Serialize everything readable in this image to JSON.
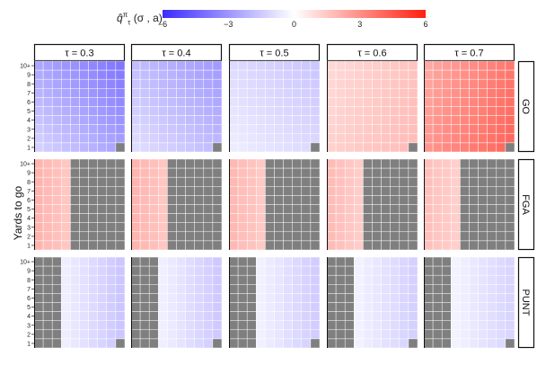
{
  "chart_data": {
    "type": "heatmap",
    "legend": {
      "title_prefix": "q̂",
      "title_sup": "π",
      "title_sub": "τ",
      "title_suffix": "(σ , a)",
      "ticks": [
        "−6",
        "−3",
        "0",
        "3",
        "6"
      ],
      "tick_values": [
        -6,
        -3,
        0,
        3,
        6
      ],
      "range": [
        -6,
        6
      ],
      "colors": {
        "low": "#3b2bff",
        "mid": "#ffffff",
        "high": "#ff1f10"
      }
    },
    "ylabel": "Yards to go",
    "column_labels": [
      "τ = 0.3",
      "τ = 0.4",
      "τ = 0.5",
      "τ = 0.6",
      "τ = 0.7"
    ],
    "tau_values": [
      0.3,
      0.4,
      0.5,
      0.6,
      0.7
    ],
    "row_labels": [
      "GO",
      "FGA",
      "PUNT"
    ],
    "y_ticks": [
      "10+",
      "9",
      "8",
      "7",
      "6",
      "5",
      "4",
      "3",
      "2",
      "1"
    ],
    "missing_color": "#7f7f7f",
    "grid": true,
    "panels": {
      "GO": {
        "shape": "go",
        "values_by_tau": [
          -3.4,
          -2.5,
          -1.4,
          1.4,
          3.2
        ]
      },
      "FGA": {
        "shape": "fga",
        "values_by_tau": [
          2.0,
          2.0,
          1.9,
          1.8,
          1.7
        ]
      },
      "PUNT": {
        "shape": "punt",
        "values_by_tau": [
          -1.6,
          -1.5,
          -1.4,
          -1.3,
          -1.2
        ]
      }
    }
  }
}
